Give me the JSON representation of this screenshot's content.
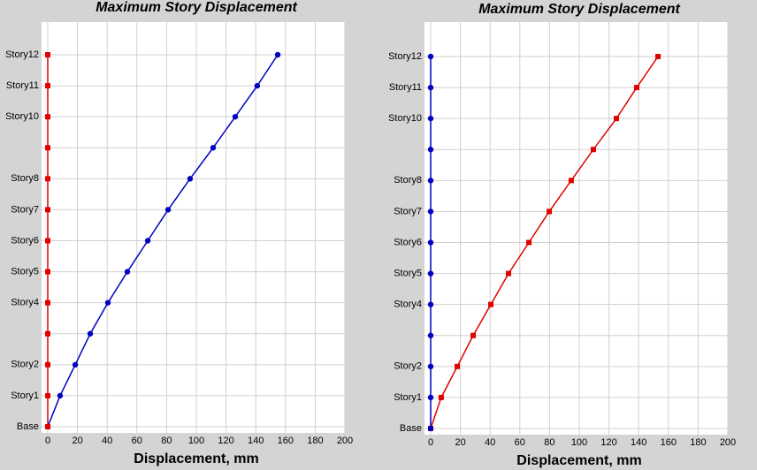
{
  "chart_data": [
    {
      "type": "line",
      "title": "Maximum Story Displacement",
      "x_label": "Displacement, mm",
      "categories": [
        "Base",
        "Story1",
        "Story2",
        null,
        "Story4",
        "Story5",
        "Story6",
        "Story7",
        "Story8",
        null,
        "Story10",
        "Story11",
        "Story12"
      ],
      "series": [
        {
          "color": "#0000c0",
          "marker": "circle",
          "values": [
            0,
            8.3,
            18.5,
            28.6,
            40.5,
            53.6,
            67.3,
            81,
            95.8,
            111.3,
            126.2,
            141,
            154.8
          ]
        },
        {
          "color": "#e00000",
          "marker": "square",
          "values": [
            0,
            0,
            0,
            0,
            0,
            0,
            0,
            0,
            0,
            0,
            0,
            0,
            0
          ]
        }
      ],
      "xlim": [
        0,
        200
      ],
      "xticks": [
        0,
        20,
        40,
        60,
        80,
        100,
        120,
        140,
        160,
        180,
        200
      ],
      "grid": true
    },
    {
      "type": "line",
      "title": "Maximum Story Displacement",
      "x_label": "Displacement, mm",
      "categories": [
        "Base",
        "Story1",
        "Story2",
        null,
        "Story4",
        "Story5",
        "Story6",
        "Story7",
        "Story8",
        null,
        "Story10",
        "Story11",
        "Story12"
      ],
      "series": [
        {
          "color": "#e00000",
          "marker": "square",
          "values": [
            0,
            7.1,
            17.9,
            28.6,
            40.5,
            52.4,
            66.1,
            79.8,
            94.6,
            109.5,
            125,
            138.7,
            153
          ]
        },
        {
          "color": "#0000c0",
          "marker": "circle",
          "values": [
            0,
            0,
            0,
            0,
            0,
            0,
            0,
            0,
            0,
            0,
            0,
            0,
            0
          ]
        }
      ],
      "xlim": [
        0,
        200
      ],
      "xticks": [
        0,
        20,
        40,
        60,
        80,
        100,
        120,
        140,
        160,
        180,
        200
      ],
      "grid": true
    }
  ]
}
